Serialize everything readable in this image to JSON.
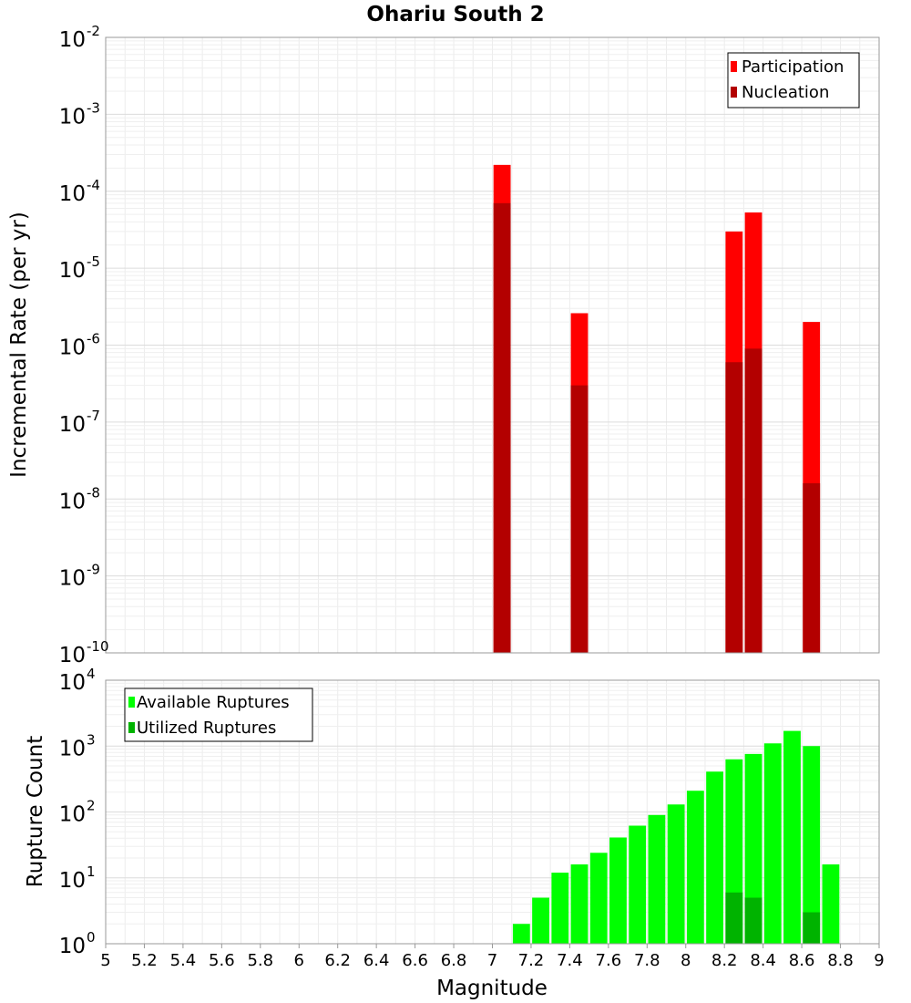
{
  "chart_data": [
    {
      "type": "bar",
      "title": "Ohariu South 2",
      "ylabel": "Incremental Rate (per yr)",
      "xlabel": "",
      "yscale": "log",
      "ylim_exp": [
        -10,
        -2
      ],
      "ytick_exps": [
        -10,
        -9,
        -8,
        -7,
        -6,
        -5,
        -4,
        -3,
        -2
      ],
      "xlim": [
        5,
        9
      ],
      "bin_width": 0.1,
      "legend": {
        "position": "top-right",
        "entries": [
          "Participation",
          "Nucleation"
        ]
      },
      "colors": {
        "Participation": "#ff0000",
        "Nucleation": "#b30000"
      },
      "series": [
        {
          "name": "Participation",
          "x": [
            7.05,
            7.45,
            8.25,
            8.35,
            8.65
          ],
          "values": [
            0.00022,
            2.6e-06,
            3e-05,
            5.3e-05,
            2e-06
          ]
        },
        {
          "name": "Nucleation",
          "x": [
            7.05,
            7.45,
            8.25,
            8.35,
            8.65
          ],
          "values": [
            7e-05,
            3e-07,
            6e-07,
            9e-07,
            1.6e-08
          ]
        }
      ]
    },
    {
      "type": "bar",
      "title": "",
      "ylabel": "Rupture Count",
      "xlabel": "Magnitude",
      "yscale": "log",
      "ylim_exp": [
        0,
        4
      ],
      "ytick_exps": [
        0,
        1,
        2,
        3,
        4
      ],
      "xlim": [
        5,
        9
      ],
      "xticks": [
        "5",
        "5.2",
        "5.4",
        "5.6",
        "5.8",
        "6",
        "6.2",
        "6.4",
        "6.6",
        "6.8",
        "7",
        "7.2",
        "7.4",
        "7.6",
        "7.8",
        "8",
        "8.2",
        "8.4",
        "8.6",
        "8.8",
        "9"
      ],
      "bin_width": 0.1,
      "legend": {
        "position": "top-left",
        "entries": [
          "Available Ruptures",
          "Utilized Ruptures"
        ]
      },
      "colors": {
        "Available Ruptures": "#00ff00",
        "Utilized Ruptures": "#00b300"
      },
      "series": [
        {
          "name": "Available Ruptures",
          "x": [
            6.55,
            6.85,
            6.95,
            7.05,
            7.15,
            7.25,
            7.35,
            7.45,
            7.55,
            7.65,
            7.75,
            7.85,
            7.95,
            8.05,
            8.15,
            8.25,
            8.35,
            8.45,
            8.55,
            8.65,
            8.75
          ],
          "values": [
            1,
            1,
            1,
            1,
            2,
            5,
            12,
            16,
            24,
            41,
            62,
            90,
            130,
            210,
            410,
            630,
            760,
            1100,
            1700,
            1000,
            16
          ]
        },
        {
          "name": "Utilized Ruptures",
          "x": [
            7.05,
            7.45,
            8.15,
            8.25,
            8.35,
            8.65
          ],
          "values": [
            1,
            1,
            1,
            6,
            5,
            3
          ]
        }
      ]
    }
  ]
}
